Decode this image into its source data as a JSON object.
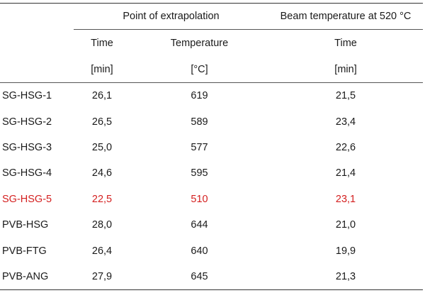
{
  "table": {
    "group_headers": {
      "point_of_extrapolation": "Point of extrapolation",
      "beam_temperature": "Beam temperature at 520 °C"
    },
    "sub_headers": {
      "time": "Time",
      "temperature": "Temperature",
      "time2": "Time"
    },
    "units": {
      "time": "[min]",
      "temperature": "[°C]",
      "time2": "[min]"
    },
    "highlight_color": "#d42020",
    "rows": [
      {
        "label": "SG-HSG-1",
        "time": "26,1",
        "temperature": "619",
        "beam_time": "21,5"
      },
      {
        "label": "SG-HSG-2",
        "time": "26,5",
        "temperature": "589",
        "beam_time": "23,4"
      },
      {
        "label": "SG-HSG-3",
        "time": "25,0",
        "temperature": "577",
        "beam_time": "22,6"
      },
      {
        "label": "SG-HSG-4",
        "time": "24,6",
        "temperature": "595",
        "beam_time": "21,4"
      },
      {
        "label": "SG-HSG-5",
        "time": "22,5",
        "temperature": "510",
        "beam_time": "23,1",
        "highlighted": true
      },
      {
        "label": "PVB-HSG",
        "time": "28,0",
        "temperature": "644",
        "beam_time": "21,0"
      },
      {
        "label": "PVB-FTG",
        "time": "26,4",
        "temperature": "640",
        "beam_time": "19,9"
      },
      {
        "label": "PVB-ANG",
        "time": "27,9",
        "temperature": "645",
        "beam_time": "21,3"
      }
    ]
  }
}
